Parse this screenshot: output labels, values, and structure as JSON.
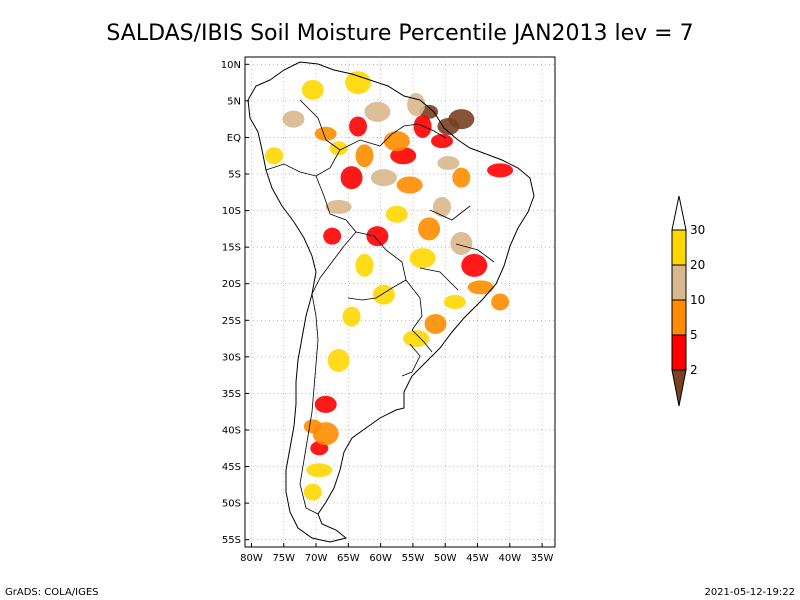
{
  "title": "SALDAS/IBIS Soil Moisture Percentile JAN2013 lev = 7",
  "footer": {
    "left": "GrADS: COLA/IGES",
    "right": "2021-05-12-19:22"
  },
  "axes": {
    "lat_labels": [
      "10N",
      "5N",
      "EQ",
      "5S",
      "10S",
      "15S",
      "20S",
      "25S",
      "30S",
      "35S",
      "40S",
      "45S",
      "50S",
      "55S"
    ],
    "lon_labels": [
      "80W",
      "75W",
      "70W",
      "65W",
      "60W",
      "55W",
      "50W",
      "45W",
      "40W",
      "35W"
    ],
    "lat_range": [
      -56,
      11
    ],
    "lon_range": [
      -81,
      -33
    ]
  },
  "colorbar": {
    "labels": [
      "2",
      "5",
      "10",
      "20",
      "30"
    ],
    "colors": {
      "above30": "#ffffff",
      "20-30": "#ffd700",
      "10-20": "#d8b88c",
      "5-10": "#ff8c00",
      "2-5": "#ff0000",
      "below2": "#7a4020"
    }
  },
  "chart_data": {
    "type": "heatmap",
    "title": "SALDAS/IBIS Soil Moisture Percentile JAN2013 lev = 7",
    "variable": "Soil Moisture Percentile",
    "period": "JAN2013",
    "level": 7,
    "classes": [
      {
        "range": "<2",
        "color": "#7a4020"
      },
      {
        "range": "2-5",
        "color": "#ff0000"
      },
      {
        "range": "5-10",
        "color": "#ff8c00"
      },
      {
        "range": "10-20",
        "color": "#d8b88c"
      },
      {
        "range": "20-30",
        "color": "#ffd700"
      },
      {
        "range": ">30",
        "color": "#ffffff"
      }
    ],
    "patches": [
      {
        "lon": -52.5,
        "lat": 3.5,
        "class": "<2"
      },
      {
        "lon": -49.5,
        "lat": 1.5,
        "class": "<2"
      },
      {
        "lon": -47.5,
        "lat": 2.5,
        "class": "<2"
      },
      {
        "lon": -53.5,
        "lat": 1.5,
        "class": "2-5"
      },
      {
        "lon": -50.5,
        "lat": -0.5,
        "class": "2-5"
      },
      {
        "lon": -56.5,
        "lat": -2.5,
        "class": "2-5"
      },
      {
        "lon": -63.5,
        "lat": 1.5,
        "class": "2-5"
      },
      {
        "lon": -64.5,
        "lat": -5.5,
        "class": "2-5"
      },
      {
        "lon": -41.5,
        "lat": -4.5,
        "class": "2-5"
      },
      {
        "lon": -67.5,
        "lat": -13.5,
        "class": "2-5"
      },
      {
        "lon": -60.5,
        "lat": -13.5,
        "class": "2-5"
      },
      {
        "lon": -45.5,
        "lat": -17.5,
        "class": "2-5"
      },
      {
        "lon": -69.5,
        "lat": -42.5,
        "class": "2-5"
      },
      {
        "lon": -68.5,
        "lat": -36.5,
        "class": "2-5"
      },
      {
        "lon": -57.5,
        "lat": -0.5,
        "class": "5-10"
      },
      {
        "lon": -62.5,
        "lat": -2.5,
        "class": "5-10"
      },
      {
        "lon": -68.5,
        "lat": 0.5,
        "class": "5-10"
      },
      {
        "lon": -55.5,
        "lat": -6.5,
        "class": "5-10"
      },
      {
        "lon": -47.5,
        "lat": -5.5,
        "class": "5-10"
      },
      {
        "lon": -52.5,
        "lat": -12.5,
        "class": "5-10"
      },
      {
        "lon": -44.5,
        "lat": -20.5,
        "class": "5-10"
      },
      {
        "lon": -41.5,
        "lat": -22.5,
        "class": "5-10"
      },
      {
        "lon": -51.5,
        "lat": -25.5,
        "class": "5-10"
      },
      {
        "lon": -68.5,
        "lat": -40.5,
        "class": "5-10"
      },
      {
        "lon": -70.5,
        "lat": -39.5,
        "class": "5-10"
      },
      {
        "lon": -73.5,
        "lat": 2.5,
        "class": "10-20"
      },
      {
        "lon": -60.5,
        "lat": 3.5,
        "class": "10-20"
      },
      {
        "lon": -54.5,
        "lat": 4.5,
        "class": "10-20"
      },
      {
        "lon": -49.5,
        "lat": -3.5,
        "class": "10-20"
      },
      {
        "lon": -59.5,
        "lat": -5.5,
        "class": "10-20"
      },
      {
        "lon": -50.5,
        "lat": -9.5,
        "class": "10-20"
      },
      {
        "lon": -47.5,
        "lat": -14.5,
        "class": "10-20"
      },
      {
        "lon": -66.5,
        "lat": -9.5,
        "class": "10-20"
      },
      {
        "lon": -76.5,
        "lat": -2.5,
        "class": "20-30"
      },
      {
        "lon": -70.5,
        "lat": 6.5,
        "class": "20-30"
      },
      {
        "lon": -63.5,
        "lat": 7.5,
        "class": "20-30"
      },
      {
        "lon": -66.5,
        "lat": -1.5,
        "class": "20-30"
      },
      {
        "lon": -57.5,
        "lat": -10.5,
        "class": "20-30"
      },
      {
        "lon": -53.5,
        "lat": -16.5,
        "class": "20-30"
      },
      {
        "lon": -62.5,
        "lat": -17.5,
        "class": "20-30"
      },
      {
        "lon": -48.5,
        "lat": -22.5,
        "class": "20-30"
      },
      {
        "lon": -54.5,
        "lat": -27.5,
        "class": "20-30"
      },
      {
        "lon": -64.5,
        "lat": -24.5,
        "class": "20-30"
      },
      {
        "lon": -66.5,
        "lat": -30.5,
        "class": "20-30"
      },
      {
        "lon": -69.5,
        "lat": -45.5,
        "class": "20-30"
      },
      {
        "lon": -70.5,
        "lat": -48.5,
        "class": "20-30"
      },
      {
        "lon": -59.5,
        "lat": -21.5,
        "class": "20-30"
      }
    ]
  }
}
